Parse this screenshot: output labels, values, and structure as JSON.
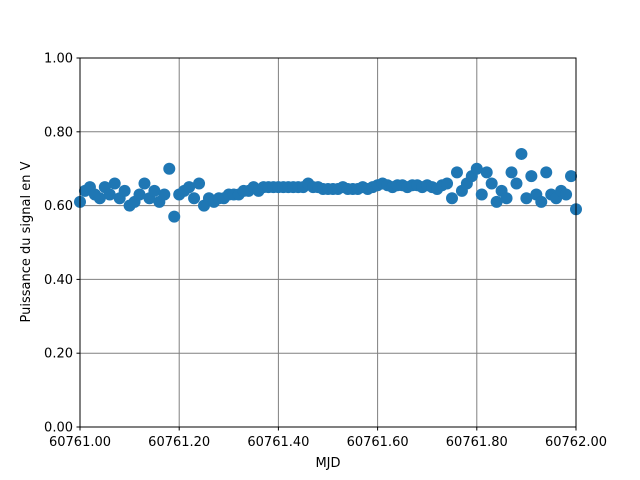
{
  "chart_data": {
    "type": "scatter",
    "xlabel": "MJD",
    "ylabel": "Puissance du signal en V",
    "series": [
      {
        "color": "#1f77b4",
        "x": [
          60761.0,
          60761.01,
          60761.02,
          60761.03,
          60761.04,
          60761.05,
          60761.06,
          60761.07,
          60761.08,
          60761.09,
          60761.1,
          60761.11,
          60761.12,
          60761.13,
          60761.14,
          60761.15,
          60761.16,
          60761.17,
          60761.18,
          60761.19,
          60761.2,
          60761.21,
          60761.22,
          60761.23,
          60761.24,
          60761.25,
          60761.26,
          60761.27,
          60761.28,
          60761.29,
          60761.3,
          60761.31,
          60761.32,
          60761.33,
          60761.34,
          60761.35,
          60761.36,
          60761.37,
          60761.38,
          60761.39,
          60761.4,
          60761.41,
          60761.42,
          60761.43,
          60761.44,
          60761.45,
          60761.46,
          60761.47,
          60761.48,
          60761.49,
          60761.5,
          60761.51,
          60761.52,
          60761.53,
          60761.54,
          60761.55,
          60761.56,
          60761.57,
          60761.58,
          60761.59,
          60761.6,
          60761.61,
          60761.62,
          60761.63,
          60761.64,
          60761.65,
          60761.66,
          60761.67,
          60761.68,
          60761.69,
          60761.7,
          60761.71,
          60761.72,
          60761.73,
          60761.74,
          60761.75,
          60761.76,
          60761.77,
          60761.78,
          60761.79,
          60761.8,
          60761.81,
          60761.82,
          60761.83,
          60761.84,
          60761.85,
          60761.86,
          60761.87,
          60761.88,
          60761.89,
          60761.9,
          60761.91,
          60761.92,
          60761.93,
          60761.94,
          60761.95,
          60761.96,
          60761.97,
          60761.98,
          60761.99,
          60762.0
        ],
        "values": [
          0.61,
          0.64,
          0.65,
          0.63,
          0.62,
          0.65,
          0.63,
          0.66,
          0.62,
          0.64,
          0.6,
          0.61,
          0.63,
          0.66,
          0.62,
          0.64,
          0.61,
          0.63,
          0.7,
          0.57,
          0.63,
          0.64,
          0.65,
          0.62,
          0.66,
          0.6,
          0.62,
          0.61,
          0.62,
          0.62,
          0.63,
          0.63,
          0.63,
          0.64,
          0.64,
          0.65,
          0.64,
          0.65,
          0.65,
          0.65,
          0.65,
          0.65,
          0.65,
          0.65,
          0.65,
          0.65,
          0.66,
          0.65,
          0.65,
          0.645,
          0.645,
          0.645,
          0.645,
          0.65,
          0.645,
          0.645,
          0.645,
          0.65,
          0.645,
          0.65,
          0.655,
          0.66,
          0.655,
          0.65,
          0.655,
          0.655,
          0.65,
          0.655,
          0.655,
          0.65,
          0.655,
          0.65,
          0.645,
          0.655,
          0.66,
          0.62,
          0.69,
          0.64,
          0.66,
          0.68,
          0.7,
          0.63,
          0.69,
          0.66,
          0.61,
          0.64,
          0.62,
          0.69,
          0.66,
          0.74,
          0.62,
          0.68,
          0.63,
          0.61,
          0.69,
          0.63,
          0.62,
          0.64,
          0.63,
          0.68,
          0.59
        ]
      }
    ],
    "xlim": [
      60761.0,
      60762.0
    ],
    "xticks": [
      {
        "value": 60761.0,
        "label": "60761.00"
      },
      {
        "value": 60761.2,
        "label": "60761.20"
      },
      {
        "value": 60761.4,
        "label": "60761.40"
      },
      {
        "value": 60761.6,
        "label": "60761.60"
      },
      {
        "value": 60761.8,
        "label": "60761.80"
      },
      {
        "value": 60762.0,
        "label": "60762.00"
      }
    ],
    "ylim": [
      0,
      1
    ],
    "yticks": [
      {
        "value": 0,
        "label": "0.00"
      },
      {
        "value": 0.2,
        "label": "0.20"
      },
      {
        "value": 0.4,
        "label": "0.40"
      },
      {
        "value": 0.6,
        "label": "0.60"
      },
      {
        "value": 0.8,
        "label": "0.80"
      },
      {
        "value": 1,
        "label": "1.00"
      }
    ],
    "grid": true
  }
}
